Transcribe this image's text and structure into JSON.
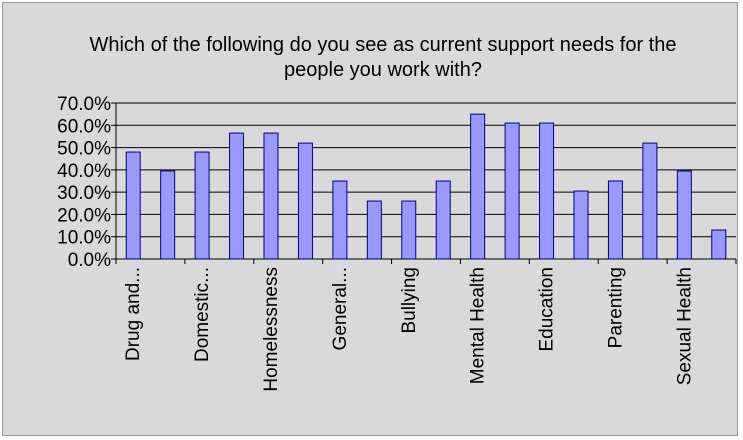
{
  "chart_data": {
    "type": "bar",
    "title": "Which of the following do you see as current support needs for the people you work with?",
    "xlabel": "",
    "ylabel": "",
    "ylim": [
      0,
      70
    ],
    "yticks": [
      "0.0%",
      "10.0%",
      "20.0%",
      "30.0%",
      "40.0%",
      "50.0%",
      "60.0%",
      "70.0%"
    ],
    "grid": true,
    "legend": "none",
    "categories": [
      "Drug and...",
      "",
      "Domestic...",
      "",
      "Homelessness",
      "",
      "General...",
      "",
      "Bullying",
      "",
      "Mental Health",
      "",
      "Education",
      "",
      "Parenting",
      "",
      "Sexual Health",
      ""
    ],
    "values": [
      48,
      39.5,
      48,
      56.5,
      56.5,
      52,
      35,
      26,
      26,
      35,
      65,
      61,
      61,
      30.5,
      35,
      52,
      39.5,
      13
    ],
    "bar_color": "#9999ff",
    "bar_border": "#000080",
    "plot_background": "#d9d9d9"
  }
}
